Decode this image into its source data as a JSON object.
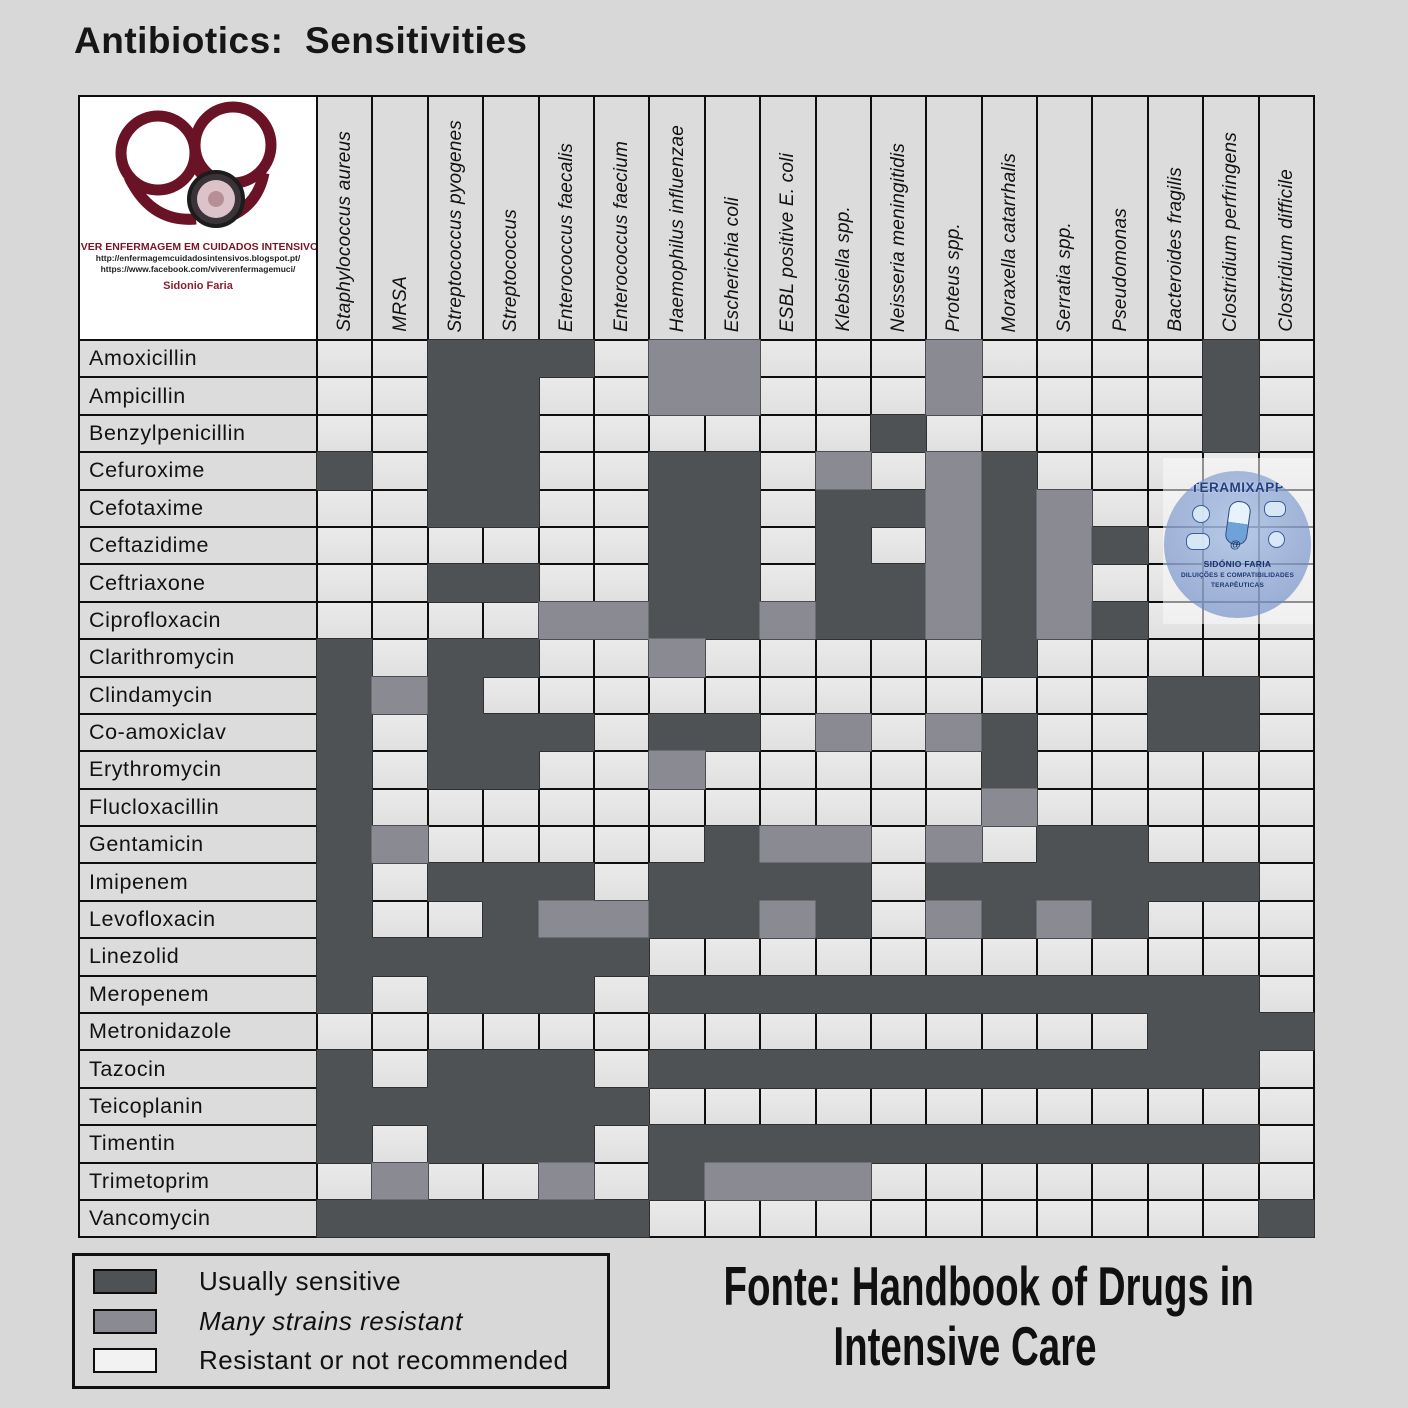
{
  "title": "Antibiotics:  Sensitivities",
  "logo_box": {
    "org": "VIVER ENFERMAGEM EM CUIDADOS INTENSIVOS",
    "url1": "http://enfermagemcuidadosintensivos.blogspot.pt/",
    "url2": "https://www.facebook.com/viverenfermagemuci/",
    "author": "Sidonio Faria"
  },
  "legend": {
    "items": [
      {
        "code": "S",
        "label": "Usually sensitive"
      },
      {
        "code": "M",
        "label": "Many strains resistant"
      },
      {
        "code": "R",
        "label": "Resistant or not recommended"
      }
    ]
  },
  "source": {
    "line1": "Fonte: Handbook of Drugs in",
    "line2": "Intensive Care"
  },
  "overlay_logo": {
    "title": "TERAMIXAPP",
    "author": "SIDÓNIO FARIA",
    "sub1": "DILUIÇÕES E COMPATIBILIDADES",
    "sub2": "TERAPÊUTICAS"
  },
  "colors": {
    "sensitive": "#4e5254",
    "many_resistant": "#8a8b92",
    "resistant": "#e5e5e5",
    "header_bg": "#dcdcdc",
    "page_bg": "#d8d8d8",
    "grid_line": "#0e0e0e"
  },
  "chart_data": {
    "type": "heatmap",
    "title": "Antibiotics: Sensitivities",
    "legend": {
      "S": "Usually sensitive",
      "M": "Many strains resistant",
      "R": "Resistant or not recommended"
    },
    "x_categories": [
      "Staphylococcus aureus",
      "MRSA",
      "Streptococcus pyogenes",
      "Streptococcus",
      "Enterococcus faecalis",
      "Enterococcus faecium",
      "Haemophilus influenzae",
      "Escherichia coli",
      "ESBL positive E. coli",
      "Klebsiella spp.",
      "Neisseria meningitidis",
      "Proteus spp.",
      "Moraxella catarrhalis",
      "Serratia spp.",
      "Pseudomonas",
      "Bacteroides fragilis",
      "Clostridium perfringens",
      "Clostridium difficile"
    ],
    "y_categories": [
      "Amoxicillin",
      "Ampicillin",
      "Benzylpenicillin",
      "Cefuroxime",
      "Cefotaxime",
      "Ceftazidime",
      "Ceftriaxone",
      "Ciprofloxacin",
      "Clarithromycin",
      "Clindamycin",
      "Co-amoxiclav",
      "Erythromycin",
      "Flucloxacillin",
      "Gentamicin",
      "Imipenem",
      "Levofloxacin",
      "Linezolid",
      "Meropenem",
      "Metronidazole",
      "Tazocin",
      "Teicoplanin",
      "Timentin",
      "Trimetoprim",
      "Vancomycin"
    ],
    "values": [
      "RRSSSRMMRRRMRRRRSR",
      "RRSSRRMMRRRMRRRRSR",
      "RRSSRRRRRRSRRRRRSR",
      "SRSSRRSSRMRMSRRRRR",
      "RRSSRRSSRSSMSMRRRR",
      "RRRRRRSSRSRMSMSRRR",
      "RRSSRRSSRSSMSMRRRR",
      "RRRRMMSSMSSMSMSRRR",
      "SRSSRRMRRRRRSRRRRR",
      "SMSRRRRRRRRRRRRSSR",
      "SRSSSRSSRMRMSRRSSR",
      "SRSSRRMRRRRRSRRRRR",
      "SRRRRRRRRRRRMRRRRR",
      "SMRRRRRSMMRMRSSRRR",
      "SRSSSRSSSSRSSSSSSR",
      "SRRSMMSSMSRMSMSRRR",
      "SSSSSSRRRRRRRRRRRR",
      "SRSSSRSSSSSSSSSSSR",
      "RRRRRRRRRRRRRRRSSS",
      "SRSSSRSSSSSSSSSSSR",
      "SSSSSSRRRRRRRRRRRR",
      "SRSSSRSSSSSSSSSSSR",
      "RMRRMRSMMMRRRRRRRR",
      "SSSSSSRRRRRRRRRRRS"
    ]
  }
}
